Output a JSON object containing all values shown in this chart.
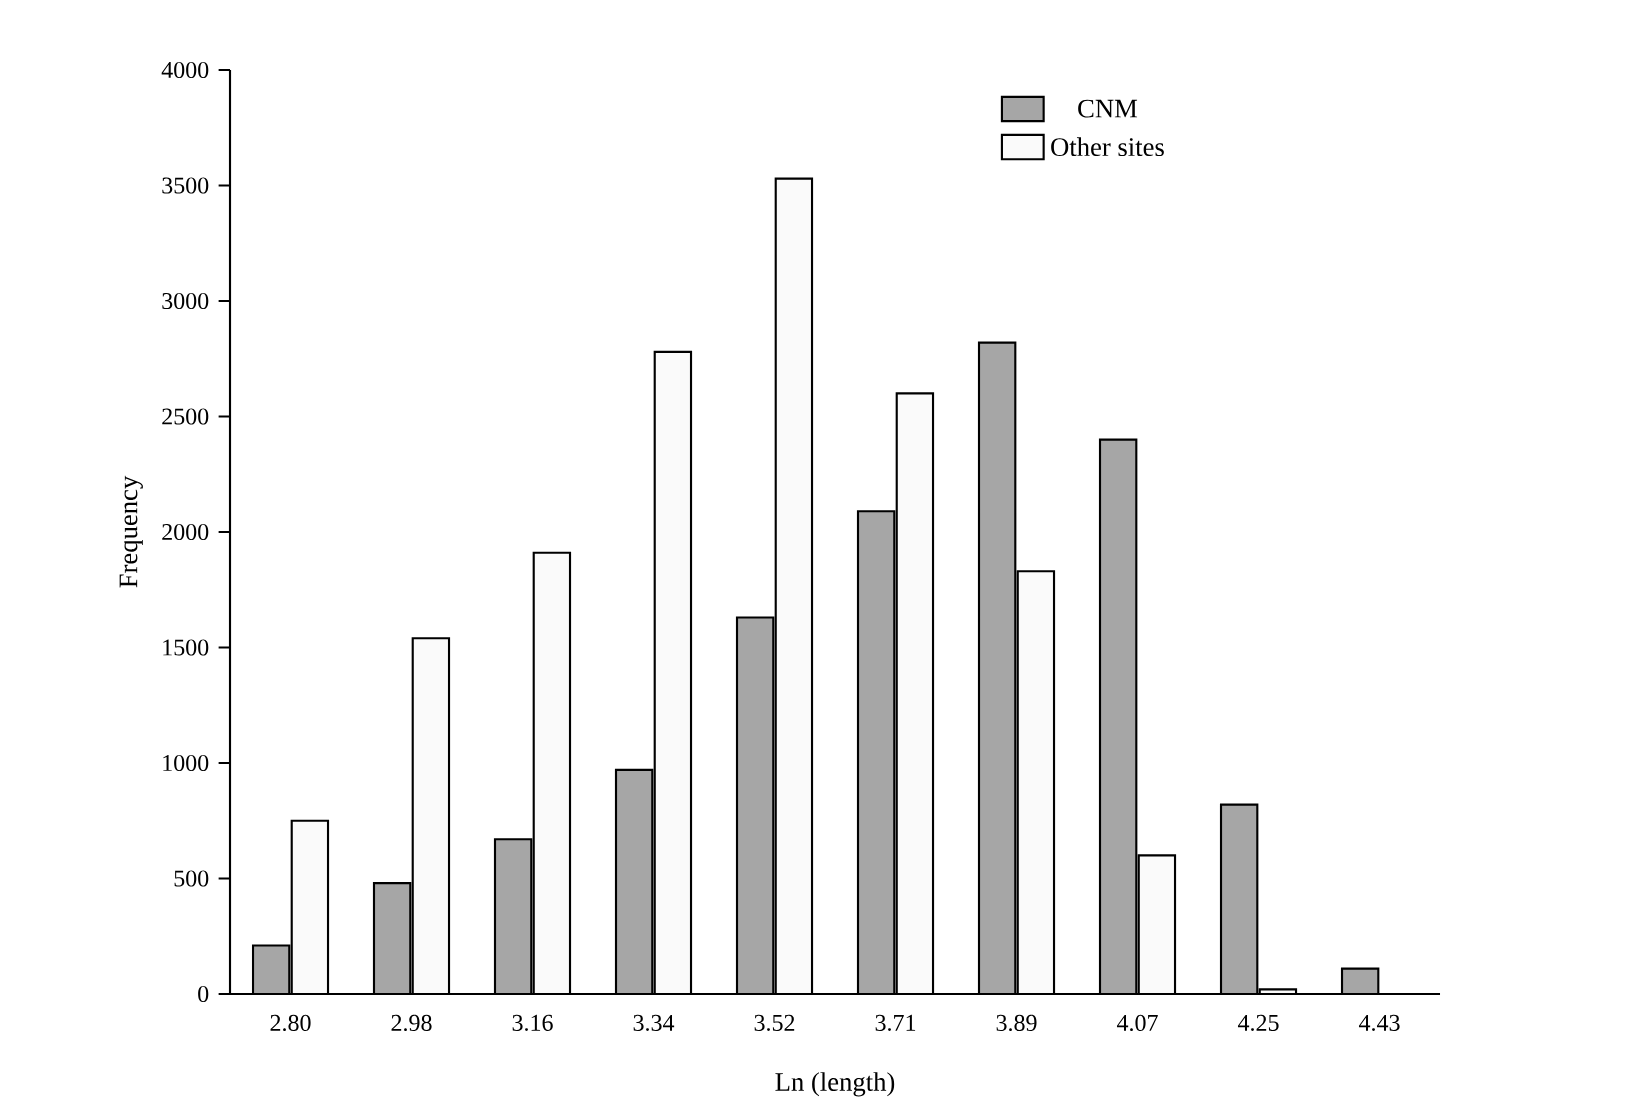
{
  "chart_data": {
    "type": "bar",
    "xlabel": "Ln (length)",
    "ylabel": "Frequency",
    "categories": [
      "2.80",
      "2.98",
      "3.16",
      "3.34",
      "3.52",
      "3.71",
      "3.89",
      "4.07",
      "4.25",
      "4.43"
    ],
    "series": [
      {
        "name": "CNM",
        "color": "#a6a6a6",
        "values": [
          210,
          480,
          670,
          970,
          1630,
          2090,
          2820,
          2400,
          820,
          110
        ]
      },
      {
        "name": "Other sites",
        "color": "#fafafa",
        "values": [
          750,
          1540,
          1910,
          2780,
          3530,
          2600,
          1830,
          600,
          20,
          null
        ]
      }
    ],
    "ylim": [
      0,
      4000
    ],
    "yticks": [
      0,
      500,
      1000,
      1500,
      2000,
      2500,
      3000,
      3500,
      4000
    ],
    "legend": "top right"
  }
}
